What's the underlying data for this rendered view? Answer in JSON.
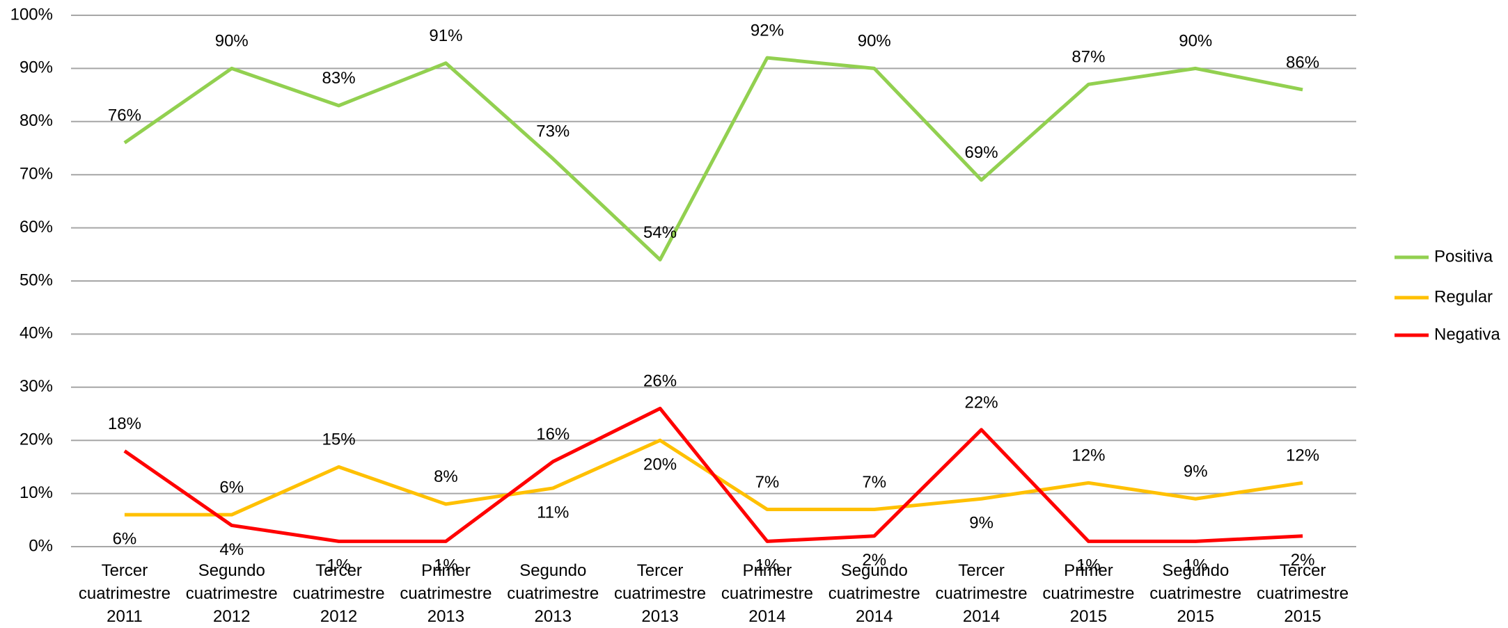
{
  "chart_data": {
    "type": "line",
    "categories": [
      [
        "Tercer",
        "cuatrimestre",
        "2011"
      ],
      [
        "Segundo",
        "cuatrimestre",
        "2012"
      ],
      [
        "Tercer",
        "cuatrimestre",
        "2012"
      ],
      [
        "Primer",
        "cuatrimestre",
        "2013"
      ],
      [
        "Segundo",
        "cuatrimestre",
        "2013"
      ],
      [
        "Tercer",
        "cuatrimestre",
        "2013"
      ],
      [
        "Primer",
        "cuatrimestre",
        "2014"
      ],
      [
        "Segundo",
        "cuatrimestre",
        "2014"
      ],
      [
        "Tercer",
        "cuatrimestre",
        "2014"
      ],
      [
        "Primer",
        "cuatrimestre",
        "2015"
      ],
      [
        "Segundo",
        "cuatrimestre",
        "2015"
      ],
      [
        "Tercer",
        "cuatrimestre",
        "2015"
      ]
    ],
    "series": [
      {
        "name": "Positiva",
        "color": "#92d050",
        "values": [
          76,
          90,
          83,
          91,
          73,
          54,
          92,
          90,
          69,
          87,
          90,
          86
        ],
        "value_labels": [
          "76%",
          "90%",
          "83%",
          "91%",
          "73%",
          "54%",
          "92%",
          "90%",
          "69%",
          "87%",
          "90%",
          "86%"
        ]
      },
      {
        "name": "Regular",
        "color": "#ffc000",
        "values": [
          6,
          6,
          15,
          8,
          11,
          20,
          7,
          7,
          9,
          12,
          9,
          12
        ],
        "value_labels": [
          "6%",
          "6%",
          "15%",
          "8%",
          "11%",
          "20%",
          "7%",
          "7%",
          "9%",
          "12%",
          "9%",
          "12%"
        ]
      },
      {
        "name": "Negativa",
        "color": "#ff0000",
        "values": [
          18,
          4,
          1,
          1,
          16,
          26,
          1,
          2,
          22,
          1,
          1,
          2
        ],
        "value_labels": [
          "18%",
          "4%",
          "1%",
          "1%",
          "16%",
          "26%",
          "1%",
          "2%",
          "22%",
          "1%",
          "1%",
          "2%"
        ]
      }
    ],
    "ylim": [
      0,
      100
    ],
    "yticks": [
      {
        "value": 0,
        "label": "0%"
      },
      {
        "value": 10,
        "label": "10%"
      },
      {
        "value": 20,
        "label": "20%"
      },
      {
        "value": 30,
        "label": "30%"
      },
      {
        "value": 40,
        "label": "40%"
      },
      {
        "value": 50,
        "label": "50%"
      },
      {
        "value": 60,
        "label": "60%"
      },
      {
        "value": 70,
        "label": "70%"
      },
      {
        "value": 80,
        "label": "80%"
      },
      {
        "value": 90,
        "label": "90%"
      },
      {
        "value": 100,
        "label": "100%"
      }
    ],
    "grid": true,
    "legend": "right"
  }
}
